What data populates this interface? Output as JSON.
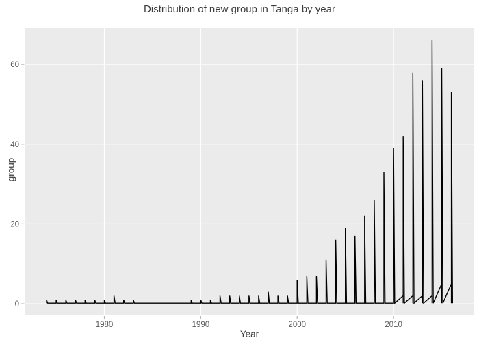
{
  "chart_data": {
    "type": "line",
    "title": "Distribution of new group in Tanga by year",
    "xlabel": "Year",
    "ylabel": "group",
    "x_ticks": [
      1980,
      1990,
      2000,
      2010
    ],
    "y_ticks": [
      0,
      20,
      40,
      60
    ],
    "xlim": [
      1971.8,
      2018.3
    ],
    "ylim": [
      -2.9,
      69.1
    ],
    "grid": true,
    "legend": false,
    "plot_bg_color": "#ebebeb",
    "grid_color": "#ffffff",
    "line_color": "#000000",
    "tick_mark_color": "#b5b5b5",
    "tick_label_color": "#5a5a5a",
    "baseline_value": 0.15,
    "spikes": [
      {
        "year": 1974,
        "value": 1
      },
      {
        "year": 1975,
        "value": 1
      },
      {
        "year": 1976,
        "value": 1
      },
      {
        "year": 1977,
        "value": 1
      },
      {
        "year": 1978,
        "value": 1
      },
      {
        "year": 1979,
        "value": 1
      },
      {
        "year": 1980,
        "value": 1
      },
      {
        "year": 1981,
        "value": 2
      },
      {
        "year": 1982,
        "value": 1
      },
      {
        "year": 1983,
        "value": 1
      },
      {
        "year": 1989,
        "value": 1
      },
      {
        "year": 1990,
        "value": 1
      },
      {
        "year": 1991,
        "value": 1
      },
      {
        "year": 1992,
        "value": 2
      },
      {
        "year": 1993,
        "value": 2
      },
      {
        "year": 1994,
        "value": 2
      },
      {
        "year": 1995,
        "value": 2
      },
      {
        "year": 1996,
        "value": 2
      },
      {
        "year": 1997,
        "value": 3
      },
      {
        "year": 1998,
        "value": 2
      },
      {
        "year": 1999,
        "value": 2
      },
      {
        "year": 2000,
        "value": 6
      },
      {
        "year": 2001,
        "value": 7
      },
      {
        "year": 2002,
        "value": 7
      },
      {
        "year": 2003,
        "value": 11
      },
      {
        "year": 2004,
        "value": 16
      },
      {
        "year": 2005,
        "value": 19
      },
      {
        "year": 2006,
        "value": 17
      },
      {
        "year": 2007,
        "value": 22
      },
      {
        "year": 2008,
        "value": 26
      },
      {
        "year": 2009,
        "value": 33
      },
      {
        "year": 2010,
        "value": 39
      },
      {
        "year": 2011,
        "value": 42
      },
      {
        "year": 2012,
        "value": 58
      },
      {
        "year": 2013,
        "value": 56
      },
      {
        "year": 2014,
        "value": 66
      },
      {
        "year": 2015,
        "value": 59
      },
      {
        "year": 2016,
        "value": 53
      }
    ],
    "feet": [
      {
        "year": 2011,
        "rise": 2
      },
      {
        "year": 2012,
        "rise": 2
      },
      {
        "year": 2013,
        "rise": 2
      },
      {
        "year": 2014,
        "rise": 2
      },
      {
        "year": 2015,
        "rise": 5
      },
      {
        "year": 2016,
        "rise": 5
      }
    ]
  }
}
